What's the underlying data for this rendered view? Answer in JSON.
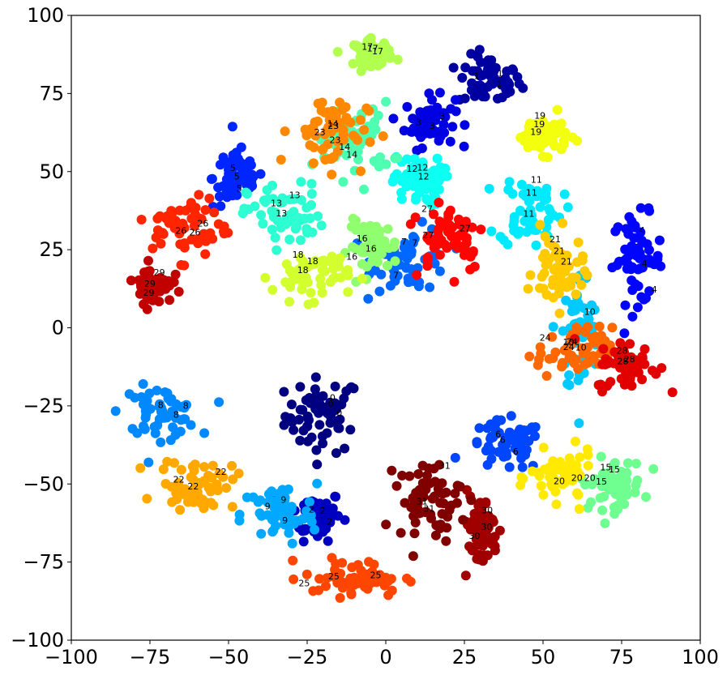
{
  "chart_data": {
    "type": "scatter",
    "title": "",
    "xlabel": "",
    "ylabel": "",
    "xlim": [
      -100,
      100
    ],
    "ylim": [
      -100,
      100
    ],
    "x_ticks": [
      -100,
      -75,
      -50,
      -25,
      0,
      25,
      50,
      75,
      100
    ],
    "y_ticks": [
      -100,
      -75,
      -50,
      -25,
      0,
      25,
      50,
      75,
      100
    ],
    "x_tick_labels": [
      "−100",
      "−75",
      "−50",
      "−25",
      "0",
      "25",
      "50",
      "75",
      "100"
    ],
    "y_tick_labels": [
      "−100",
      "−75",
      "−50",
      "−25",
      "0",
      "25",
      "50",
      "75",
      "100"
    ],
    "grid": false,
    "legend": "none",
    "colormap": "jet",
    "num_classes": 32,
    "point_labels_shown": true,
    "clusters": [
      {
        "label": "0",
        "center": [
          -20,
          -28
        ],
        "spread": [
          6,
          6
        ]
      },
      {
        "label": "1",
        "center": [
          33,
          79
        ],
        "spread": [
          5,
          4
        ]
      },
      {
        "label": "2",
        "center": [
          -22,
          -60
        ],
        "spread": [
          4,
          4
        ]
      },
      {
        "label": "3",
        "center": [
          14,
          66
        ],
        "spread": [
          4,
          4
        ]
      },
      {
        "label": "4",
        "center": [
          80,
          22
        ],
        "spread": [
          4,
          7
        ]
      },
      {
        "label": "5",
        "center": [
          -47,
          48
        ],
        "spread": [
          4,
          5
        ]
      },
      {
        "label": "6",
        "center": [
          38,
          -38
        ],
        "spread": [
          6,
          4
        ]
      },
      {
        "label": "7",
        "center": [
          8,
          22
        ],
        "spread": [
          6,
          5
        ]
      },
      {
        "label": "8",
        "center": [
          -72,
          -27
        ],
        "spread": [
          6,
          4
        ]
      },
      {
        "label": "9",
        "center": [
          -34,
          -60
        ],
        "spread": [
          6,
          5
        ]
      },
      {
        "label": "10",
        "center": [
          62,
          -2
        ],
        "spread": [
          3,
          10
        ]
      },
      {
        "label": "11",
        "center": [
          46,
          38
        ],
        "spread": [
          5,
          6
        ]
      },
      {
        "label": "12",
        "center": [
          10,
          47
        ],
        "spread": [
          4,
          4
        ]
      },
      {
        "label": "13",
        "center": [
          -32,
          36
        ],
        "spread": [
          6,
          5
        ]
      },
      {
        "label": "14",
        "center": [
          -10,
          60
        ],
        "spread": [
          6,
          6
        ]
      },
      {
        "label": "15",
        "center": [
          72,
          -50
        ],
        "spread": [
          5,
          4
        ]
      },
      {
        "label": "16",
        "center": [
          -4,
          26
        ],
        "spread": [
          4,
          4
        ]
      },
      {
        "label": "17",
        "center": [
          -4,
          88
        ],
        "spread": [
          3,
          2
        ]
      },
      {
        "label": "18",
        "center": [
          -24,
          17
        ],
        "spread": [
          6,
          4
        ]
      },
      {
        "label": "19",
        "center": [
          50,
          62
        ],
        "spread": [
          4,
          3
        ]
      },
      {
        "label": "20",
        "center": [
          56,
          -48
        ],
        "spread": [
          5,
          4
        ]
      },
      {
        "label": "21",
        "center": [
          55,
          18
        ],
        "spread": [
          4,
          6
        ]
      },
      {
        "label": "22",
        "center": [
          -60,
          -50
        ],
        "spread": [
          6,
          4
        ]
      },
      {
        "label": "23",
        "center": [
          -18,
          63
        ],
        "spread": [
          6,
          6
        ]
      },
      {
        "label": "24",
        "center": [
          60,
          -8
        ],
        "spread": [
          6,
          4
        ]
      },
      {
        "label": "25",
        "center": [
          -10,
          -80
        ],
        "spread": [
          8,
          3
        ]
      },
      {
        "label": "26",
        "center": [
          -62,
          32
        ],
        "spread": [
          6,
          5
        ]
      },
      {
        "label": "27",
        "center": [
          20,
          30
        ],
        "spread": [
          6,
          6
        ]
      },
      {
        "label": "28",
        "center": [
          77,
          -12
        ],
        "spread": [
          5,
          4
        ]
      },
      {
        "label": "29",
        "center": [
          -74,
          14
        ],
        "spread": [
          3,
          3
        ]
      },
      {
        "label": "30",
        "center": [
          30,
          -65
        ],
        "spread": [
          3,
          6
        ]
      },
      {
        "label": "31",
        "center": [
          14,
          -55
        ],
        "spread": [
          5,
          6
        ]
      }
    ]
  }
}
